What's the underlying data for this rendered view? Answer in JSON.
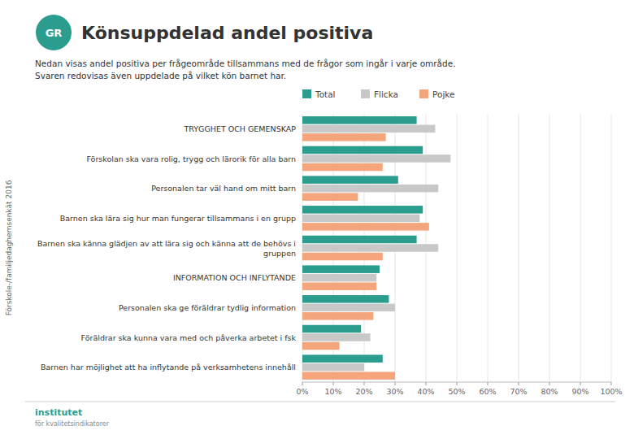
{
  "chart_data": {
    "type": "bar",
    "orientation": "horizontal",
    "title": "Könsuppdelad andel positiva",
    "subtitle": [
      "Nedan visas andel positiva per frågeområde tillsammans med de frågor som ingår i varje område.",
      "Svaren redovisas även uppdelade på vilket kön barnet har."
    ],
    "annotations": [
      "Förskole-/familjedaghemsenkät 2016",
      "GR",
      "institutet",
      "för kvalitetsindikatorer"
    ],
    "categories": [
      "TRYGGHET OCH GEMENSKAP",
      "Förskolan ska vara rolig, trygg och lärorik för alla barn",
      "Personalen tar väl hand om mitt barn",
      "Barnen ska lära sig hur man fungerar tillsammans i en grupp",
      "Barnen ska känna glädjen av att lära sig och känna att de behövs i\ngruppen",
      "INFORMATION OCH INFLYTANDE",
      "Personalen ska ge föräldrar tydlig information",
      "Föräldrar ska kunna vara med och påverka arbetet i fsk",
      "Barnen har möjlighet att ha inflytande på verksamhetens innehåll"
    ],
    "series": [
      {
        "name": "Total",
        "color": "#2a9d8f",
        "values": [
          0.37,
          0.39,
          0.31,
          0.39,
          0.37,
          0.25,
          0.28,
          0.19,
          0.26
        ]
      },
      {
        "name": "Flicka",
        "color": "#c8c8c8",
        "values": [
          0.43,
          0.48,
          0.44,
          0.38,
          0.44,
          0.24,
          0.3,
          0.22,
          0.2
        ]
      },
      {
        "name": "Pojke",
        "color": "#f4a57b",
        "values": [
          0.27,
          0.26,
          0.18,
          0.41,
          0.26,
          0.24,
          0.23,
          0.12,
          0.3
        ]
      }
    ],
    "xlim": [
      0,
      1.0
    ],
    "xticks": [
      {
        "value": 0.0,
        "label": "0%"
      },
      {
        "value": 0.1,
        "label": "10%"
      },
      {
        "value": 0.2,
        "label": "20%"
      },
      {
        "value": 0.3,
        "label": "30%"
      },
      {
        "value": 0.4,
        "label": "40%"
      },
      {
        "value": 0.5,
        "label": "50%"
      },
      {
        "value": 0.6,
        "label": "60%"
      },
      {
        "value": 0.7,
        "label": "70%"
      },
      {
        "value": 0.8,
        "label": "80%"
      },
      {
        "value": 0.9,
        "label": "90%"
      },
      {
        "value": 1.0,
        "label": "100%"
      }
    ],
    "grid": true,
    "legend": "top"
  }
}
